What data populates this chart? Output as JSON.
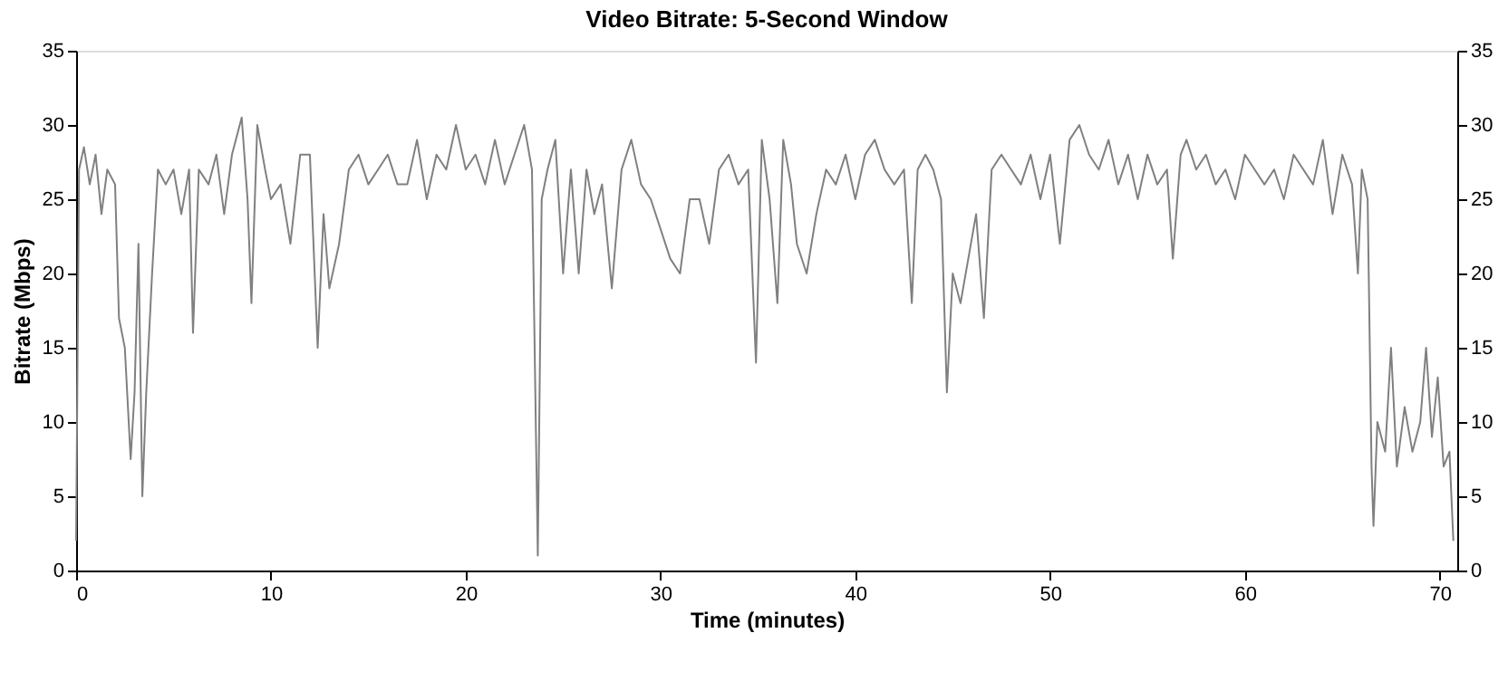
{
  "chart_data": {
    "type": "line",
    "title": "Video Bitrate: 5-Second Window",
    "xlabel": "Time (minutes)",
    "ylabel": "Bitrate (Mbps)",
    "xlim": [
      0,
      70.9
    ],
    "xticks": [
      0,
      10,
      20,
      30,
      40,
      50,
      60,
      70
    ],
    "ylim": [
      0,
      35
    ],
    "yticks": [
      0,
      5,
      10,
      15,
      20,
      25,
      30,
      35
    ],
    "y2lim": [
      0,
      35
    ],
    "y2ticks": [
      0,
      5,
      10,
      15,
      20,
      25,
      30,
      35
    ],
    "grid": false,
    "marker": "none",
    "line_style": "solid",
    "series": [
      {
        "color": "#808080",
        "x": [
          0.0,
          0.15,
          0.4,
          0.7,
          1.0,
          1.3,
          1.6,
          2.0,
          2.2,
          2.5,
          2.8,
          3.0,
          3.2,
          3.4,
          3.6,
          3.9,
          4.2,
          4.6,
          5.0,
          5.4,
          5.8,
          6.0,
          6.3,
          6.8,
          7.2,
          7.6,
          8.0,
          8.5,
          8.8,
          9.0,
          9.3,
          9.7,
          10.0,
          10.5,
          11.0,
          11.5,
          12.0,
          12.4,
          12.7,
          13.0,
          13.5,
          14.0,
          14.5,
          15.0,
          15.5,
          16.0,
          16.5,
          17.0,
          17.5,
          18.0,
          18.5,
          19.0,
          19.5,
          20.0,
          20.5,
          21.0,
          21.5,
          22.0,
          22.5,
          23.0,
          23.4,
          23.7,
          23.9,
          24.2,
          24.6,
          25.0,
          25.4,
          25.8,
          26.2,
          26.6,
          27.0,
          27.5,
          28.0,
          28.5,
          29.0,
          29.5,
          30.0,
          30.5,
          31.0,
          31.5,
          32.0,
          32.5,
          33.0,
          33.5,
          34.0,
          34.5,
          34.9,
          35.2,
          35.6,
          36.0,
          36.3,
          36.7,
          37.0,
          37.5,
          38.0,
          38.5,
          39.0,
          39.5,
          40.0,
          40.5,
          41.0,
          41.5,
          42.0,
          42.5,
          42.9,
          43.2,
          43.6,
          44.0,
          44.4,
          44.7,
          45.0,
          45.4,
          45.8,
          46.2,
          46.6,
          47.0,
          47.5,
          48.0,
          48.5,
          49.0,
          49.5,
          50.0,
          50.5,
          51.0,
          51.5,
          52.0,
          52.5,
          53.0,
          53.5,
          54.0,
          54.5,
          55.0,
          55.5,
          56.0,
          56.3,
          56.7,
          57.0,
          57.5,
          58.0,
          58.5,
          59.0,
          59.5,
          60.0,
          60.5,
          61.0,
          61.5,
          62.0,
          62.5,
          63.0,
          63.5,
          64.0,
          64.5,
          65.0,
          65.5,
          65.8,
          66.0,
          66.3,
          66.5,
          66.6,
          66.8,
          67.2,
          67.5,
          67.8,
          68.2,
          68.6,
          69.0,
          69.3,
          69.6,
          69.9,
          70.2,
          70.5,
          70.7
        ],
        "values": [
          2,
          27,
          28.5,
          26,
          28,
          24,
          27,
          26,
          17,
          15,
          7.5,
          12,
          22,
          5,
          12,
          20,
          27,
          26,
          27,
          24,
          27,
          16,
          27,
          26,
          28,
          24,
          28,
          30.5,
          25,
          18,
          30,
          27,
          25,
          26,
          22,
          28,
          28,
          15,
          24,
          19,
          22,
          27,
          28,
          26,
          27,
          28,
          26,
          26,
          29,
          25,
          28,
          27,
          30,
          27,
          28,
          26,
          29,
          26,
          28,
          30,
          27,
          1,
          25,
          27,
          29,
          20,
          27,
          20,
          27,
          24,
          26,
          19,
          27,
          29,
          26,
          25,
          23,
          21,
          20,
          25,
          25,
          22,
          27,
          28,
          26,
          27,
          14,
          29,
          25,
          18,
          29,
          26,
          22,
          20,
          24,
          27,
          26,
          28,
          25,
          28,
          29,
          27,
          26,
          27,
          18,
          27,
          28,
          27,
          25,
          12,
          20,
          18,
          21,
          24,
          17,
          27,
          28,
          27,
          26,
          28,
          25,
          28,
          22,
          29,
          30,
          28,
          27,
          29,
          26,
          28,
          25,
          28,
          26,
          27,
          21,
          28,
          29,
          27,
          28,
          26,
          27,
          25,
          28,
          27,
          26,
          27,
          25,
          28,
          27,
          26,
          29,
          24,
          28,
          26,
          20,
          27,
          25,
          7,
          3,
          10,
          8,
          15,
          7,
          11,
          8,
          10,
          15,
          9,
          13,
          7,
          8,
          2
        ]
      }
    ]
  }
}
